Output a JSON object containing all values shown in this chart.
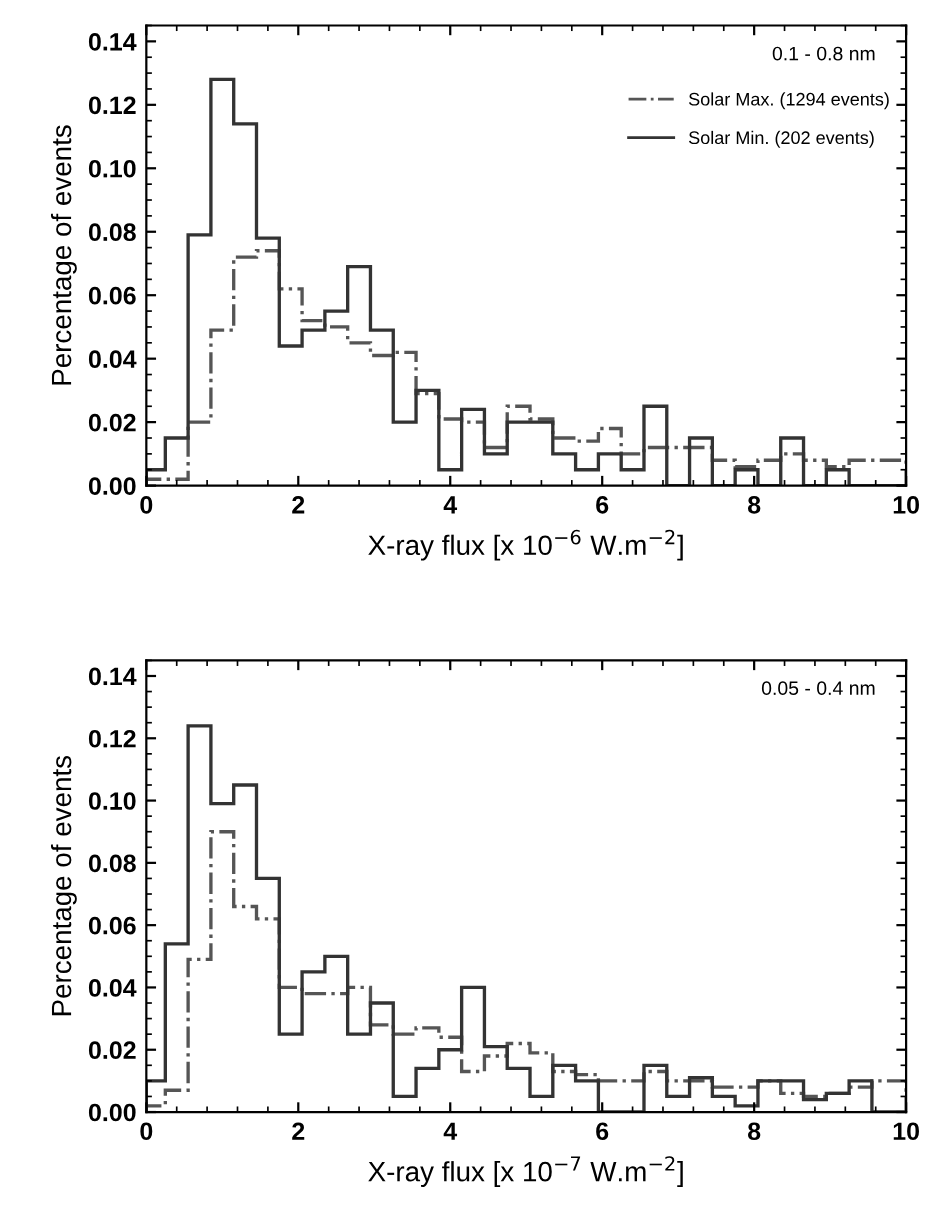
{
  "chart_data": [
    {
      "type": "histogram",
      "xlabel": "X-ray flux [x 10$^{−6}$ W.m$^{−2}$]",
      "ylabel": "Percentage of events",
      "annotations": [
        "0.1 - 0.8 nm"
      ],
      "bins": [
        0,
        0.25,
        0.55,
        0.85,
        1.15,
        1.45,
        1.75,
        2.05,
        2.35,
        2.65,
        2.95,
        3.25,
        3.55,
        3.85,
        4.15,
        4.45,
        4.75,
        5.05,
        5.35,
        5.65,
        5.95,
        6.25,
        6.55,
        6.85,
        7.15,
        7.45,
        7.75,
        8.05,
        8.35,
        8.65,
        8.95,
        9.25,
        9.55,
        9.85,
        10
      ],
      "series": [
        {
          "name": "Solar Max. (1294 events)",
          "color": "#555555",
          "line_style": "dashed",
          "values": [
            0.002,
            0.002,
            0.02,
            0.049,
            0.072,
            0.074,
            0.062,
            0.052,
            0.05,
            0.045,
            0.041,
            0.042,
            0.029,
            0.021,
            0.02,
            0.012,
            0.025,
            0.021,
            0.015,
            0.014,
            0.018,
            0.01,
            0.012,
            0.012,
            0.012,
            0.008,
            0.006,
            0.008,
            0.01,
            0.008,
            0.006,
            0.008,
            0.008,
            0.008
          ]
        },
        {
          "name": "Solar Min. (202 events)",
          "color": "#333333",
          "line_style": "solid",
          "values": [
            0.005,
            0.015,
            0.079,
            0.128,
            0.114,
            0.078,
            0.044,
            0.049,
            0.055,
            0.069,
            0.049,
            0.02,
            0.03,
            0.005,
            0.024,
            0.01,
            0.02,
            0.02,
            0.01,
            0.005,
            0.01,
            0.005,
            0.025,
            0.0,
            0.015,
            0.0,
            0.005,
            0.0,
            0.015,
            0.0,
            0.005,
            0.0,
            0.0,
            0.0
          ]
        }
      ],
      "xlim": [
        0,
        10
      ],
      "xticks": [
        0,
        2,
        4,
        6,
        8,
        10
      ],
      "ylim": [
        0,
        0.145
      ],
      "yticks": [
        {
          "value": 0,
          "label": "0.00"
        },
        {
          "value": 0.02,
          "label": "0.02"
        },
        {
          "value": 0.04,
          "label": "0.04"
        },
        {
          "value": 0.06,
          "label": "0.06"
        },
        {
          "value": 0.08,
          "label": "0.08"
        },
        {
          "value": 0.1,
          "label": "0.10"
        },
        {
          "value": 0.12,
          "label": "0.12"
        },
        {
          "value": 0.14,
          "label": "0.14"
        }
      ],
      "legend": "top right",
      "grid": false
    },
    {
      "type": "histogram",
      "xlabel": "X-ray flux [x 10$^{−7}$ W.m$^{−2}$]",
      "ylabel": "Percentage of events",
      "annotations": [
        "0.05 - 0.4 nm"
      ],
      "bins": [
        0,
        0.25,
        0.55,
        0.85,
        1.15,
        1.45,
        1.75,
        2.05,
        2.35,
        2.65,
        2.95,
        3.25,
        3.55,
        3.85,
        4.15,
        4.45,
        4.75,
        5.05,
        5.35,
        5.65,
        5.95,
        6.25,
        6.55,
        6.85,
        7.15,
        7.45,
        7.75,
        8.05,
        8.35,
        8.65,
        8.95,
        9.25,
        9.55,
        9.85,
        10
      ],
      "series": [
        {
          "color": "#555555",
          "line_style": "dashed",
          "values": [
            0.002,
            0.007,
            0.049,
            0.09,
            0.066,
            0.062,
            0.04,
            0.038,
            0.038,
            0.04,
            0.028,
            0.025,
            0.027,
            0.024,
            0.013,
            0.018,
            0.022,
            0.019,
            0.013,
            0.012,
            0.01,
            0.01,
            0.013,
            0.01,
            0.01,
            0.008,
            0.008,
            0.01,
            0.006,
            0.005,
            0.006,
            0.008,
            0.01,
            0.01
          ]
        },
        {
          "color": "#333333",
          "line_style": "solid",
          "values": [
            0.01,
            0.054,
            0.124,
            0.099,
            0.105,
            0.075,
            0.025,
            0.045,
            0.05,
            0.025,
            0.035,
            0.005,
            0.014,
            0.02,
            0.04,
            0.021,
            0.014,
            0.005,
            0.015,
            0.01,
            0.0,
            0.0,
            0.015,
            0.005,
            0.011,
            0.005,
            0.002,
            0.01,
            0.01,
            0.004,
            0.006,
            0.01,
            0.0,
            0.0
          ]
        }
      ],
      "xlim": [
        0,
        10
      ],
      "xticks": [
        0,
        2,
        4,
        6,
        8,
        10
      ],
      "ylim": [
        0,
        0.145
      ],
      "yticks": [
        {
          "value": 0,
          "label": "0.00"
        },
        {
          "value": 0.02,
          "label": "0.02"
        },
        {
          "value": 0.04,
          "label": "0.04"
        },
        {
          "value": 0.06,
          "label": "0.06"
        },
        {
          "value": 0.08,
          "label": "0.08"
        },
        {
          "value": 0.1,
          "label": "0.10"
        },
        {
          "value": 0.12,
          "label": "0.12"
        },
        {
          "value": 0.14,
          "label": "0.14"
        }
      ],
      "grid": false
    }
  ]
}
